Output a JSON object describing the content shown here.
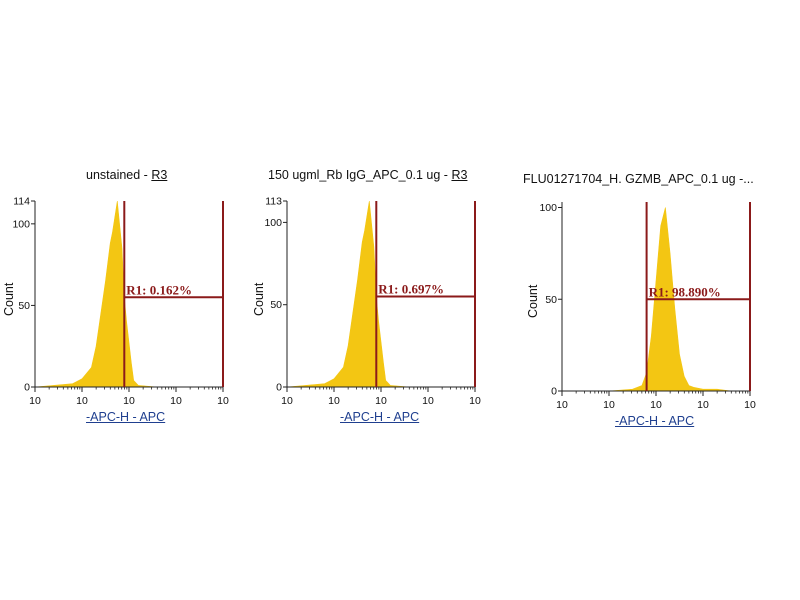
{
  "chart_data": [
    {
      "type": "area",
      "title_prefix": "unstained - ",
      "title_link": "R3",
      "xlabel": "-APC-H - APC",
      "ylabel": "Count",
      "xscale": "log",
      "xlim_decades": [
        0,
        4
      ],
      "x_tick_labels": [
        "10",
        "10",
        "10",
        "10",
        "10"
      ],
      "ylim": [
        0,
        114
      ],
      "y_ticks": [
        0,
        50,
        100,
        114
      ],
      "y_tick_labels": [
        "0",
        "50",
        "100",
        "114"
      ],
      "fill_color": "#f2c200",
      "gate_color": "#8b1a1a",
      "gate": {
        "label": "R1: 0.162%",
        "x_start_decade": 1.9,
        "x_end_decade": 4.0,
        "y_level": 55
      },
      "histogram": {
        "x_decade": [
          0.0,
          0.8,
          1.0,
          1.2,
          1.3,
          1.4,
          1.5,
          1.6,
          1.65,
          1.75,
          1.85,
          1.9,
          1.95,
          2.05,
          2.1,
          2.2,
          2.6,
          3.0,
          4.0
        ],
        "count": [
          0,
          2,
          5,
          12,
          25,
          45,
          65,
          88,
          95,
          114,
          85,
          55,
          40,
          15,
          4,
          1,
          0,
          0,
          0
        ]
      }
    },
    {
      "type": "area",
      "title_prefix": "150 ugml_Rb IgG_APC_0.1 ug - ",
      "title_link": "R3",
      "xlabel": "-APC-H - APC",
      "ylabel": "Count",
      "xscale": "log",
      "xlim_decades": [
        0,
        4
      ],
      "x_tick_labels": [
        "10",
        "10",
        "10",
        "10",
        "10"
      ],
      "ylim": [
        0,
        113
      ],
      "y_ticks": [
        0,
        50,
        100,
        113
      ],
      "y_tick_labels": [
        "0",
        "50",
        "100",
        "113"
      ],
      "fill_color": "#f2c200",
      "gate_color": "#8b1a1a",
      "gate": {
        "label": "R1: 0.697%",
        "x_start_decade": 1.9,
        "x_end_decade": 4.0,
        "y_level": 55
      },
      "histogram": {
        "x_decade": [
          0.0,
          0.8,
          1.0,
          1.2,
          1.3,
          1.4,
          1.5,
          1.6,
          1.65,
          1.75,
          1.85,
          1.9,
          1.95,
          2.05,
          2.1,
          2.2,
          2.6,
          3.0,
          4.0
        ],
        "count": [
          0,
          2,
          5,
          12,
          25,
          45,
          65,
          88,
          95,
          113,
          85,
          55,
          40,
          15,
          4,
          1,
          0,
          0,
          0
        ]
      }
    },
    {
      "type": "area",
      "title_prefix": "FLU01271704_H. GZMB_APC_0.1 ug -...",
      "title_link": "",
      "xlabel": "-APC-H - APC",
      "ylabel": "Count",
      "xscale": "log",
      "xlim_decades": [
        0,
        4
      ],
      "x_tick_labels": [
        "10",
        "10",
        "10",
        "10",
        "10"
      ],
      "ylim": [
        0,
        103
      ],
      "y_ticks": [
        0,
        50,
        100
      ],
      "y_tick_labels": [
        "0",
        "50",
        "100"
      ],
      "fill_color": "#f2c200",
      "gate_color": "#8b1a1a",
      "gate": {
        "label": "R1: 98.890%",
        "x_start_decade": 1.8,
        "x_end_decade": 4.0,
        "y_level": 50
      },
      "histogram": {
        "x_decade": [
          0.0,
          1.0,
          1.5,
          1.7,
          1.8,
          1.9,
          2.0,
          2.1,
          2.2,
          2.3,
          2.4,
          2.5,
          2.6,
          2.7,
          2.8,
          3.0,
          3.3,
          3.6,
          4.0
        ],
        "count": [
          0,
          0,
          1,
          3,
          10,
          30,
          60,
          90,
          100,
          75,
          45,
          20,
          8,
          3,
          2,
          1,
          1,
          0,
          0
        ]
      }
    }
  ]
}
